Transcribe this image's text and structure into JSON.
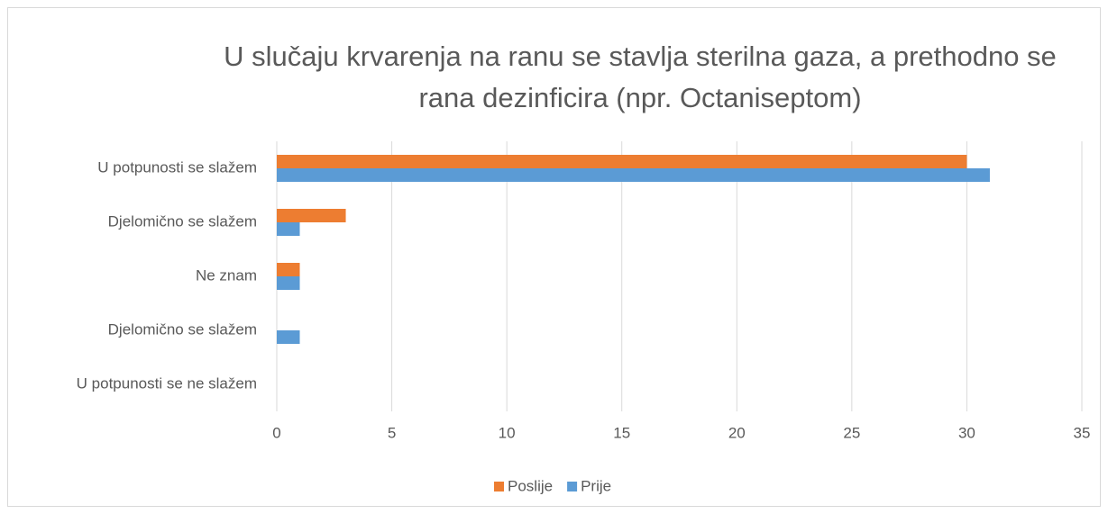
{
  "chart_data": {
    "type": "hbar",
    "title": "U slučaju krvarenja na ranu se stavlja sterilna gaza, a prethodno se rana dezinficira (npr. Octaniseptom)",
    "categories": [
      "U potpunosti se slažem",
      "Djelomično se slažem",
      "Ne znam",
      "Djelomično se slažem",
      "U potpunosti se ne slažem"
    ],
    "series": [
      {
        "name": "Poslije",
        "color": "#ed7d31",
        "values": [
          30,
          3,
          1,
          0,
          0
        ]
      },
      {
        "name": "Prije",
        "color": "#5b9bd5",
        "values": [
          31,
          1,
          1,
          1,
          0
        ]
      }
    ],
    "xlim": [
      0,
      35
    ],
    "xticks": [
      0,
      5,
      10,
      15,
      20,
      25,
      30,
      35
    ],
    "grid": true,
    "legend": "bottom"
  }
}
